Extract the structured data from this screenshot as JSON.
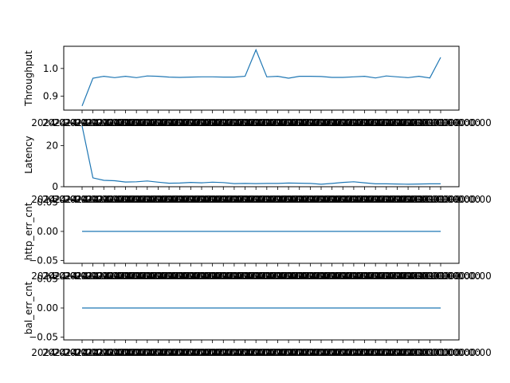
{
  "colors": {
    "series": "#1f77b4",
    "axes": "#000000",
    "background": "#ffffff"
  },
  "x_tick_text": "2024-01-01 00:00:00",
  "chart_data": [
    {
      "type": "line",
      "ylabel": "Throughput",
      "xlabel": "",
      "ylim": [
        0.85,
        1.08
      ],
      "yticks": [
        0.9,
        1.0
      ],
      "ytick_labels": [
        "0.9",
        "1.0"
      ],
      "grid": false,
      "series": [
        {
          "values": [
            0.865,
            0.965,
            0.972,
            0.967,
            0.972,
            0.967,
            0.973,
            0.972,
            0.969,
            0.968,
            0.969,
            0.97,
            0.97,
            0.969,
            0.969,
            0.972,
            1.067,
            0.97,
            0.972,
            0.965,
            0.972,
            0.972,
            0.971,
            0.968,
            0.968,
            0.97,
            0.972,
            0.966,
            0.973,
            0.97,
            0.967,
            0.972,
            0.966,
            1.04
          ]
        }
      ]
    },
    {
      "type": "line",
      "ylabel": "Latency",
      "xlabel": "",
      "ylim": [
        0,
        31
      ],
      "yticks": [
        0,
        20
      ],
      "ytick_labels": [
        "0",
        "20"
      ],
      "grid": false,
      "series": [
        {
          "values": [
            29.5,
            4.3,
            3.1,
            2.9,
            2.3,
            2.4,
            2.8,
            2.2,
            1.7,
            1.8,
            2.1,
            1.9,
            2.2,
            2.0,
            1.5,
            1.6,
            1.5,
            1.6,
            1.6,
            1.8,
            1.7,
            1.6,
            1.2,
            1.6,
            2.1,
            2.4,
            1.9,
            1.4,
            1.4,
            1.3,
            1.2,
            1.3,
            1.4,
            1.4
          ]
        }
      ]
    },
    {
      "type": "line",
      "ylabel": "http_err_cnt",
      "xlabel": "",
      "ylim": [
        -0.055,
        0.055
      ],
      "yticks": [
        -0.05,
        0.0,
        0.05
      ],
      "ytick_labels": [
        "−0.05",
        "0.00",
        "0.05"
      ],
      "grid": false,
      "series": [
        {
          "values": [
            0,
            0,
            0,
            0,
            0,
            0,
            0,
            0,
            0,
            0,
            0,
            0,
            0,
            0,
            0,
            0,
            0,
            0,
            0,
            0,
            0,
            0,
            0,
            0,
            0,
            0,
            0,
            0,
            0,
            0,
            0,
            0,
            0,
            0
          ]
        }
      ]
    },
    {
      "type": "line",
      "ylabel": "bal_err_cnt",
      "xlabel": "",
      "ylim": [
        -0.055,
        0.055
      ],
      "yticks": [
        -0.05,
        0.0,
        0.05
      ],
      "ytick_labels": [
        "−0.05",
        "0.00",
        "0.05"
      ],
      "grid": false,
      "series": [
        {
          "values": [
            0,
            0,
            0,
            0,
            0,
            0,
            0,
            0,
            0,
            0,
            0,
            0,
            0,
            0,
            0,
            0,
            0,
            0,
            0,
            0,
            0,
            0,
            0,
            0,
            0,
            0,
            0,
            0,
            0,
            0,
            0,
            0,
            0,
            0
          ]
        }
      ]
    }
  ]
}
